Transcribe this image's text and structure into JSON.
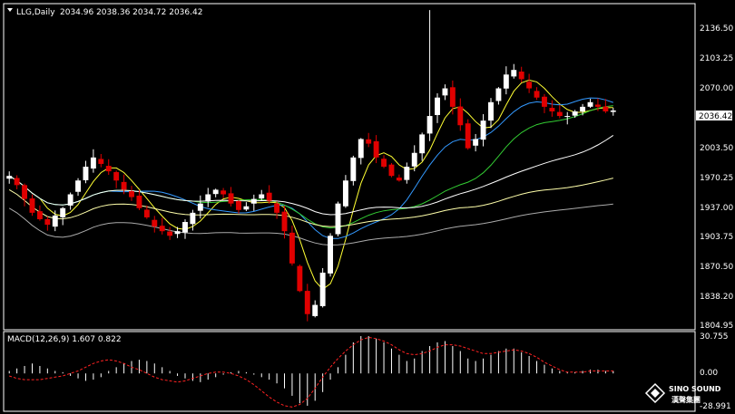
{
  "header": {
    "symbol_label": "LLG,Daily",
    "ohlc": "2034.96 2038.36 2034.72 2036.42"
  },
  "price_axis": {
    "ticks": [
      "2136.50",
      "2103.25",
      "2070.00",
      "2003.50",
      "1970.25",
      "1937.00",
      "1903.75",
      "1870.50",
      "1838.20",
      "1804.95"
    ],
    "current_price": "2036.42"
  },
  "indicator": {
    "label": "MACD(12,26,9) 1.607 0.822",
    "ticks": [
      "30.755",
      "0.00",
      "-28.991"
    ]
  },
  "logo": {
    "text_main": "SINO SOUND",
    "text_sub": "漢聲集團"
  },
  "colors": {
    "background": "#000000",
    "frame": "#ffffff",
    "bull_candle": "#ffffff",
    "bear_candle": "#e00000",
    "ma_fast": "#ffff33",
    "ma_mid": "#3399ff",
    "ma_slow": "#33cc33",
    "ma_long": "#ffffff",
    "ma_extra": "#ffffaa",
    "ma_base": "#aaaaaa",
    "macd_hist": "#ffffff",
    "macd_signal": "#ff2222",
    "price_tag_bg": "#ffffff"
  },
  "chart_data": {
    "type": "candlestick",
    "symbol": "LLG",
    "timeframe": "Daily",
    "ylim": [
      1800,
      2150
    ],
    "close_path": [
      1965,
      1955,
      1940,
      1925,
      1918,
      1912,
      1922,
      1930,
      1945,
      1960,
      1975,
      1985,
      1978,
      1970,
      1960,
      1950,
      1942,
      1930,
      1920,
      1910,
      1905,
      1900,
      1905,
      1915,
      1925,
      1935,
      1945,
      1950,
      1945,
      1935,
      1928,
      1932,
      1940,
      1945,
      1938,
      1925,
      1905,
      1870,
      1840,
      1815,
      1825,
      1860,
      1900,
      1935,
      1960,
      1985,
      2005,
      2000,
      1985,
      1975,
      1965,
      1960,
      1975,
      1990,
      2010,
      2030,
      2050,
      2060,
      2040,
      2020,
      1995,
      2005,
      2025,
      2045,
      2060,
      2075,
      2080,
      2070,
      2060,
      2050,
      2040,
      2035,
      2030,
      2030,
      2035,
      2040,
      2045,
      2040,
      2035,
      2036
    ],
    "macd": {
      "ylim": [
        -28.991,
        30.755
      ],
      "histogram": [
        2,
        4,
        6,
        8,
        6,
        4,
        2,
        1,
        -2,
        -4,
        -6,
        -5,
        -3,
        2,
        5,
        8,
        10,
        11,
        10,
        8,
        5,
        2,
        -2,
        -4,
        -6,
        -7,
        -5,
        -3,
        -1,
        1,
        2,
        1,
        -1,
        -3,
        -5,
        -8,
        -12,
        -18,
        -24,
        -26,
        -22,
        -15,
        -5,
        5,
        15,
        25,
        30,
        30,
        28,
        25,
        20,
        15,
        10,
        12,
        18,
        22,
        25,
        26,
        22,
        18,
        12,
        10,
        12,
        15,
        18,
        20,
        20,
        17,
        14,
        10,
        7,
        4,
        2,
        1,
        1,
        2,
        3,
        3,
        2,
        2
      ],
      "signal_line": [
        -2,
        -4,
        -5,
        -5,
        -5,
        -4,
        -3,
        -2,
        0,
        2,
        5,
        8,
        10,
        11,
        10,
        8,
        5,
        3,
        0,
        -3,
        -5,
        -6,
        -7,
        -6,
        -4,
        -2,
        0,
        1,
        1,
        0,
        -2,
        -5,
        -9,
        -14,
        -19,
        -23,
        -26,
        -27,
        -25,
        -20,
        -12,
        -3,
        5,
        12,
        18,
        23,
        27,
        29,
        28,
        26,
        23,
        19,
        16,
        15,
        16,
        18,
        21,
        23,
        23,
        22,
        20,
        18,
        16,
        16,
        17,
        18,
        19,
        18,
        16,
        13,
        9,
        6,
        3,
        1,
        1,
        1,
        2,
        2,
        2,
        2
      ]
    }
  }
}
